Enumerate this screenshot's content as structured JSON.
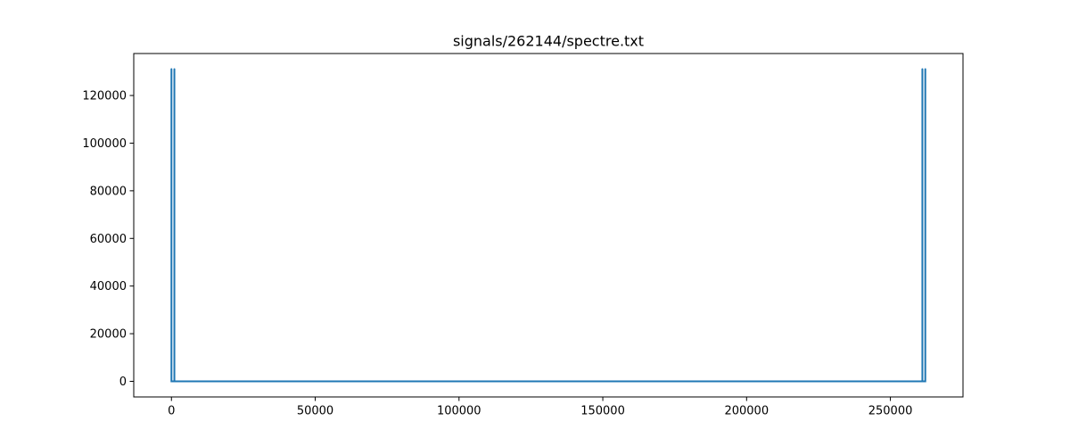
{
  "chart_data": {
    "type": "line",
    "title": "signals/262144/spectre.txt",
    "xlabel": "",
    "ylabel": "",
    "xlim": [
      -13107,
      275251
    ],
    "ylim": [
      -6553.6,
      137625.6
    ],
    "x_ticks": [
      0,
      50000,
      100000,
      150000,
      200000,
      250000
    ],
    "x_tick_labels": [
      "0",
      "50000",
      "100000",
      "150000",
      "200000",
      "250000"
    ],
    "y_ticks": [
      0,
      20000,
      40000,
      60000,
      80000,
      100000,
      120000
    ],
    "y_tick_labels": [
      "0",
      "20000",
      "40000",
      "60000",
      "80000",
      "100000",
      "120000"
    ],
    "grid": false,
    "series": [
      {
        "color": "#1f77b4",
        "x": [
          0,
          0,
          0,
          1,
          1,
          1,
          1,
          1023,
          1023,
          1023,
          1023,
          1024,
          1024,
          1024,
          261120,
          261120,
          261120,
          261121,
          261121,
          261121,
          261121,
          262143,
          262143,
          262143,
          262143
        ],
        "y": [
          0,
          131072,
          0,
          0,
          131072,
          0,
          0,
          0,
          131072,
          0,
          0,
          0,
          131072,
          0,
          0,
          131072,
          0,
          0,
          131072,
          0,
          0,
          0,
          131072,
          0,
          0
        ]
      }
    ]
  }
}
